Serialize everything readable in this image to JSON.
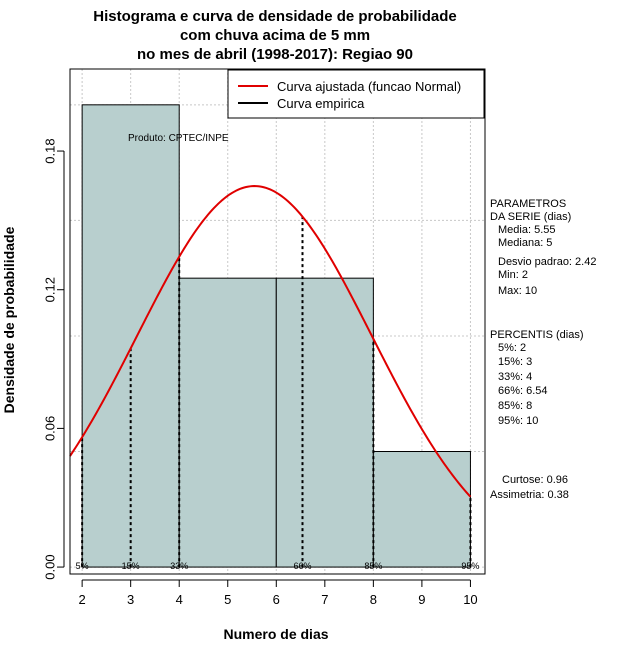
{
  "chart_data": {
    "type": "bar",
    "title": [
      "Histograma e curva de densidade de probabilidade",
      "com chuva acima de 5 mm",
      "no mes de abril (1998-2017): Regiao 90"
    ],
    "xlabel": "Numero de dias",
    "ylabel": "Densidade de probabilidade",
    "xlim": [
      1.75,
      10.3
    ],
    "ylim": [
      -0.003,
      0.2155
    ],
    "xticks": [
      "2",
      "3",
      "4",
      "5",
      "6",
      "7",
      "8",
      "9",
      "10"
    ],
    "yticks": [
      "0.00",
      "0.06",
      "0.12",
      "0.18"
    ],
    "bins": [
      {
        "x0": 2,
        "x1": 4,
        "value": 0.2
      },
      {
        "x0": 4,
        "x1": 6,
        "value": 0.125
      },
      {
        "x0": 6,
        "x1": 8,
        "value": 0.125
      },
      {
        "x0": 8,
        "x1": 10,
        "value": 0.05
      }
    ],
    "bar_color": "#b8cfce",
    "normal_curve": {
      "name": "Curva ajustada (funcao Normal)",
      "mean": 5.55,
      "sd": 2.42,
      "color": "#e00000"
    },
    "empirical_curve": {
      "name": "Curva empirica",
      "color": "#000000"
    },
    "percentile_markers": [
      {
        "x": 2,
        "label": "5%"
      },
      {
        "x": 3,
        "label": "15%"
      },
      {
        "x": 4,
        "label": "33%"
      },
      {
        "x": 6.54,
        "label": "66%"
      },
      {
        "x": 8,
        "label": "85%"
      },
      {
        "x": 10,
        "label": "95%"
      }
    ],
    "product_label": "Produto: CPTEC/INPE"
  },
  "side_panel": {
    "params_title": [
      "PARAMETROS",
      "DA SERIE (dias)"
    ],
    "params": [
      "Media: 5.55",
      "Mediana: 5",
      "Desvio padrao: 2.42",
      "Min: 2",
      "Max: 10"
    ],
    "percentiles_title": "PERCENTIS (dias)",
    "percentiles": [
      "5%: 2",
      "15%: 3",
      "33%: 4",
      "66%: 6.54",
      "85%: 8",
      "95%: 10"
    ],
    "stats": [
      "Curtose: 0.96",
      "Assimetria: 0.38"
    ]
  }
}
